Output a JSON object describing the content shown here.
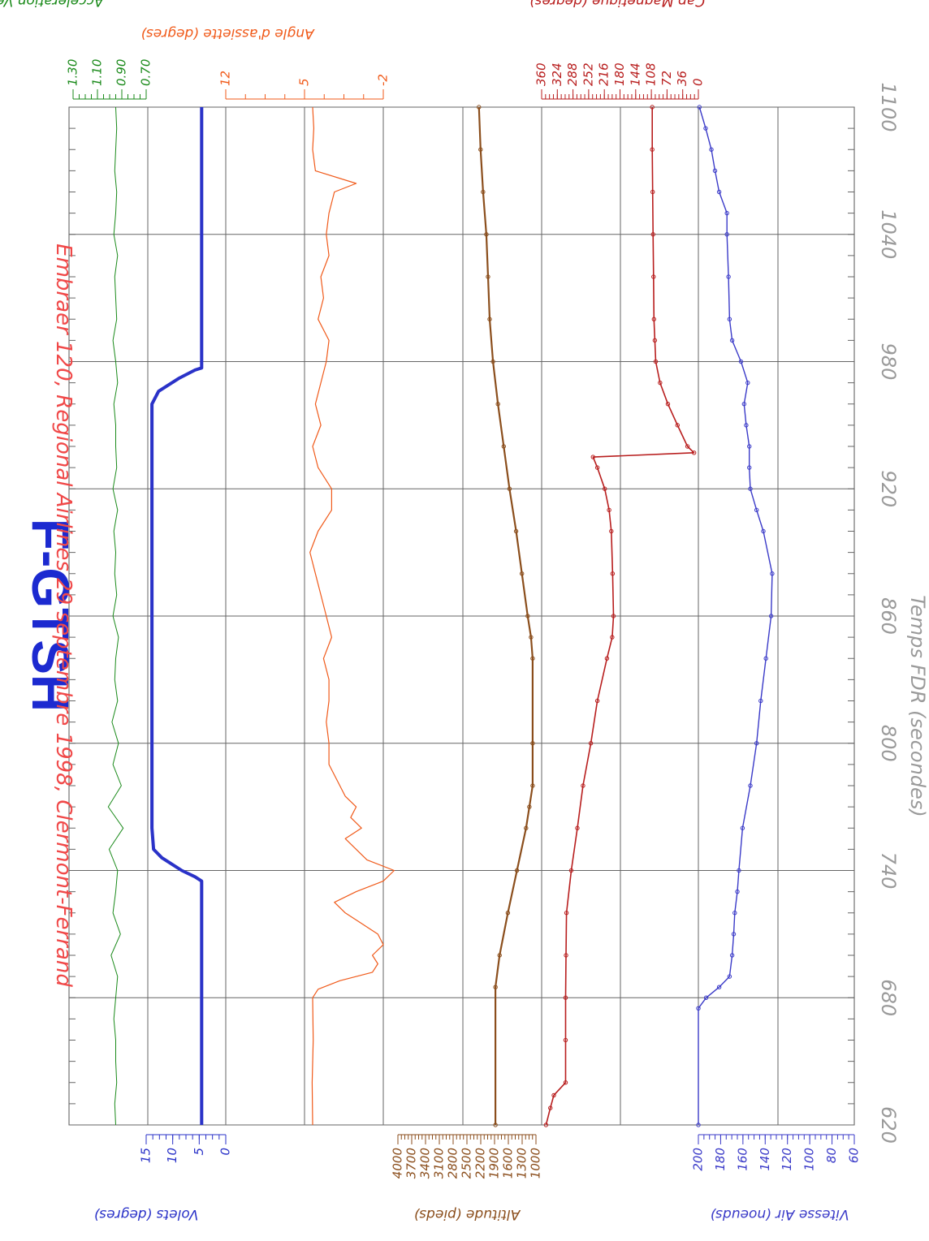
{
  "chart_data": {
    "type": "line",
    "title": "F-GTSH",
    "subtitle": "Embraer 120, Regional Airlines    29 septembre 1998, Clermont-Ferrand",
    "xlabel": "Temps FDR (secondes)",
    "xlim": [
      620,
      1100
    ],
    "x_ticks": [
      "620",
      "680",
      "740",
      "800",
      "860",
      "920",
      "980",
      "1040",
      "1100"
    ],
    "grid": true,
    "series": [
      {
        "name": "Acceleration Verticale (g)",
        "key": "accel",
        "color": "#1a8a1a",
        "ylim": [
          0.5,
          1.5
        ],
        "ticks": [
          "0.70",
          "0.90",
          "1.10",
          "1.30"
        ],
        "x": [
          620,
          630,
          640,
          650,
          660,
          670,
          680,
          690,
          700,
          710,
          720,
          730,
          740,
          750,
          760,
          770,
          780,
          790,
          800,
          810,
          820,
          830,
          840,
          850,
          860,
          870,
          880,
          890,
          900,
          910,
          920,
          930,
          940,
          950,
          960,
          970,
          980,
          990,
          1000,
          1010,
          1020,
          1030,
          1040,
          1050,
          1060,
          1070,
          1080,
          1090,
          1100
        ],
        "y": [
          1.0,
          0.99,
          1.01,
          1.0,
          1.0,
          0.98,
          1.0,
          1.02,
          0.95,
          1.05,
          0.97,
          1.0,
          1.02,
          0.93,
          1.08,
          0.92,
          1.06,
          0.97,
          1.03,
          0.96,
          1.02,
          0.99,
          1.0,
          1.03,
          0.97,
          1.01,
          0.99,
          1.0,
          0.98,
          1.02,
          0.97,
          1.01,
          1.0,
          1.0,
          0.98,
          1.02,
          1.0,
          0.97,
          1.01,
          1.0,
          0.99,
          1.02,
          0.98,
          1.0,
          1.01,
          0.99,
          1.0,
          1.01,
          1.0
        ]
      },
      {
        "name": "Volets (degres)",
        "key": "flaps",
        "color": "#2a32c8",
        "ylim": [
          -25,
          35
        ],
        "ticks": [
          "0",
          "5",
          "10",
          "15"
        ],
        "x": [
          620,
          735,
          737,
          740,
          743,
          746,
          750,
          760,
          800,
          860,
          920,
          960,
          966,
          972,
          976,
          977,
          1100
        ],
        "y": [
          15,
          15,
          13,
          9,
          6,
          3,
          0.5,
          0,
          0,
          0,
          0,
          0,
          2,
          8,
          13,
          15,
          15
        ]
      },
      {
        "name": "Angle d'assiette (degres)",
        "key": "pitch",
        "color": "#f05a1a",
        "ylim": [
          -17,
          12
        ],
        "ticks": [
          "12",
          "5",
          "-2"
        ],
        "x": [
          620,
          640,
          660,
          680,
          684,
          688,
          692,
          696,
          700,
          705,
          710,
          715,
          720,
          725,
          730,
          735,
          740,
          745,
          750,
          755,
          760,
          765,
          770,
          775,
          780,
          790,
          800,
          810,
          820,
          830,
          840,
          850,
          860,
          870,
          880,
          890,
          900,
          910,
          920,
          930,
          940,
          950,
          960,
          970,
          980,
          990,
          1000,
          1010,
          1020,
          1030,
          1040,
          1050,
          1060,
          1064,
          1070,
          1080,
          1090,
          1100
        ],
        "y": [
          -1,
          -1.1,
          -0.9,
          -1,
          0,
          4,
          10,
          11,
          10,
          12,
          11,
          8,
          5,
          3,
          7,
          12,
          14,
          9,
          7,
          5,
          8,
          6,
          7,
          5,
          4,
          2,
          2,
          1.5,
          2,
          2,
          1,
          2.5,
          1.5,
          0.5,
          -0.5,
          -1.5,
          0,
          2.5,
          2.5,
          0,
          -1,
          0.5,
          -0.5,
          0.5,
          1.5,
          2,
          0,
          1,
          0.5,
          2,
          1.5,
          2,
          3,
          7,
          -0.5,
          -1,
          -0.8,
          -1
        ]
      },
      {
        "name": "Altitude (pieds)",
        "key": "alt",
        "color": "#8b4e1c",
        "ylim": [
          -4350,
          4000
        ],
        "ticks": [
          "4000",
          "3700",
          "3400",
          "3100",
          "2800",
          "2500",
          "2200",
          "1900",
          "1600",
          "1300",
          "1000"
        ],
        "x": [
          620,
          685,
          700,
          720,
          740,
          760,
          770,
          780,
          800,
          840,
          850,
          860,
          880,
          900,
          920,
          940,
          960,
          980,
          1000,
          1020,
          1040,
          1060,
          1080,
          1100
        ],
        "y": [
          1550,
          1550,
          1800,
          2300,
          2850,
          3400,
          3600,
          3800,
          3800,
          3800,
          3700,
          3500,
          3150,
          2800,
          2400,
          2050,
          1700,
          1400,
          1200,
          1100,
          1000,
          800,
          650,
          550
        ]
      },
      {
        "name": "Cap Magnetique (degres)",
        "key": "heading",
        "color": "#b81e1e",
        "ylim": [
          0,
          360
        ],
        "ticks": [
          "360",
          "324",
          "288",
          "252",
          "216",
          "180",
          "144",
          "108",
          "72",
          "36",
          "0"
        ],
        "x": [
          620,
          628,
          634,
          640,
          660,
          680,
          700,
          720,
          740,
          760,
          780,
          800,
          820,
          840,
          850,
          860,
          880,
          900,
          910,
          920,
          930,
          935,
          937,
          940,
          950,
          960,
          970,
          980,
          990,
          1000,
          1020,
          1040,
          1060,
          1080,
          1100
        ],
        "y": [
          10,
          20,
          28,
          55,
          55,
          55,
          56,
          57,
          68,
          82,
          95,
          113,
          128,
          150,
          162,
          165,
          163,
          160,
          155,
          145,
          128,
          118,
          350,
          335,
          312,
          290,
          272,
          262,
          260,
          258,
          257,
          256,
          255,
          254,
          254
        ]
      },
      {
        "name": "Vitesse Air (noeuds)",
        "key": "speed",
        "color": "#3a3ac8",
        "ylim": [
          60,
          360
        ],
        "ticks": [
          "200",
          "180",
          "160",
          "140",
          "120",
          "100",
          "80",
          "60"
        ],
        "x": [
          620,
          675,
          680,
          685,
          690,
          700,
          710,
          720,
          730,
          740,
          760,
          780,
          800,
          820,
          840,
          860,
          880,
          900,
          910,
          920,
          930,
          940,
          950,
          960,
          970,
          980,
          990,
          1000,
          1020,
          1040,
          1050,
          1060,
          1070,
          1080,
          1090,
          1100
        ],
        "y": [
          60,
          60,
          75,
          100,
          120,
          125,
          128,
          130,
          135,
          138,
          145,
          160,
          172,
          180,
          190,
          200,
          202,
          185,
          172,
          160,
          158,
          158,
          152,
          148,
          155,
          142,
          125,
          120,
          118,
          115,
          115,
          100,
          92,
          85,
          74,
          62
        ]
      }
    ]
  }
}
